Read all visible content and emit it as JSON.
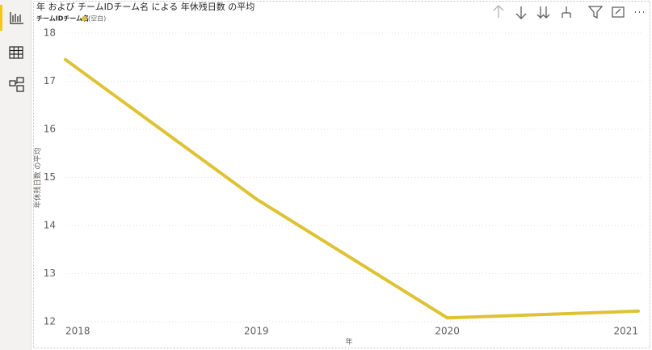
{
  "chart_data": {
    "type": "line",
    "title": "年 および チームIDチーム名 による 年休残日数 の平均",
    "legend_title": "チームIDチーム名",
    "x_label": "年",
    "y_label": "年休残日数 の平均",
    "x": [
      2018,
      2019,
      2020,
      2021
    ],
    "series": [
      {
        "name": "(空白)",
        "color": "#dfc234",
        "values": [
          17.45,
          14.55,
          12.08,
          12.22
        ]
      }
    ],
    "xlim": [
      2018,
      2021
    ],
    "xticks": [
      2018,
      2019,
      2020,
      2021
    ],
    "ylim": [
      12,
      18
    ],
    "yticks": [
      12,
      13,
      14,
      15,
      16,
      17,
      18
    ],
    "grid": true
  }
}
